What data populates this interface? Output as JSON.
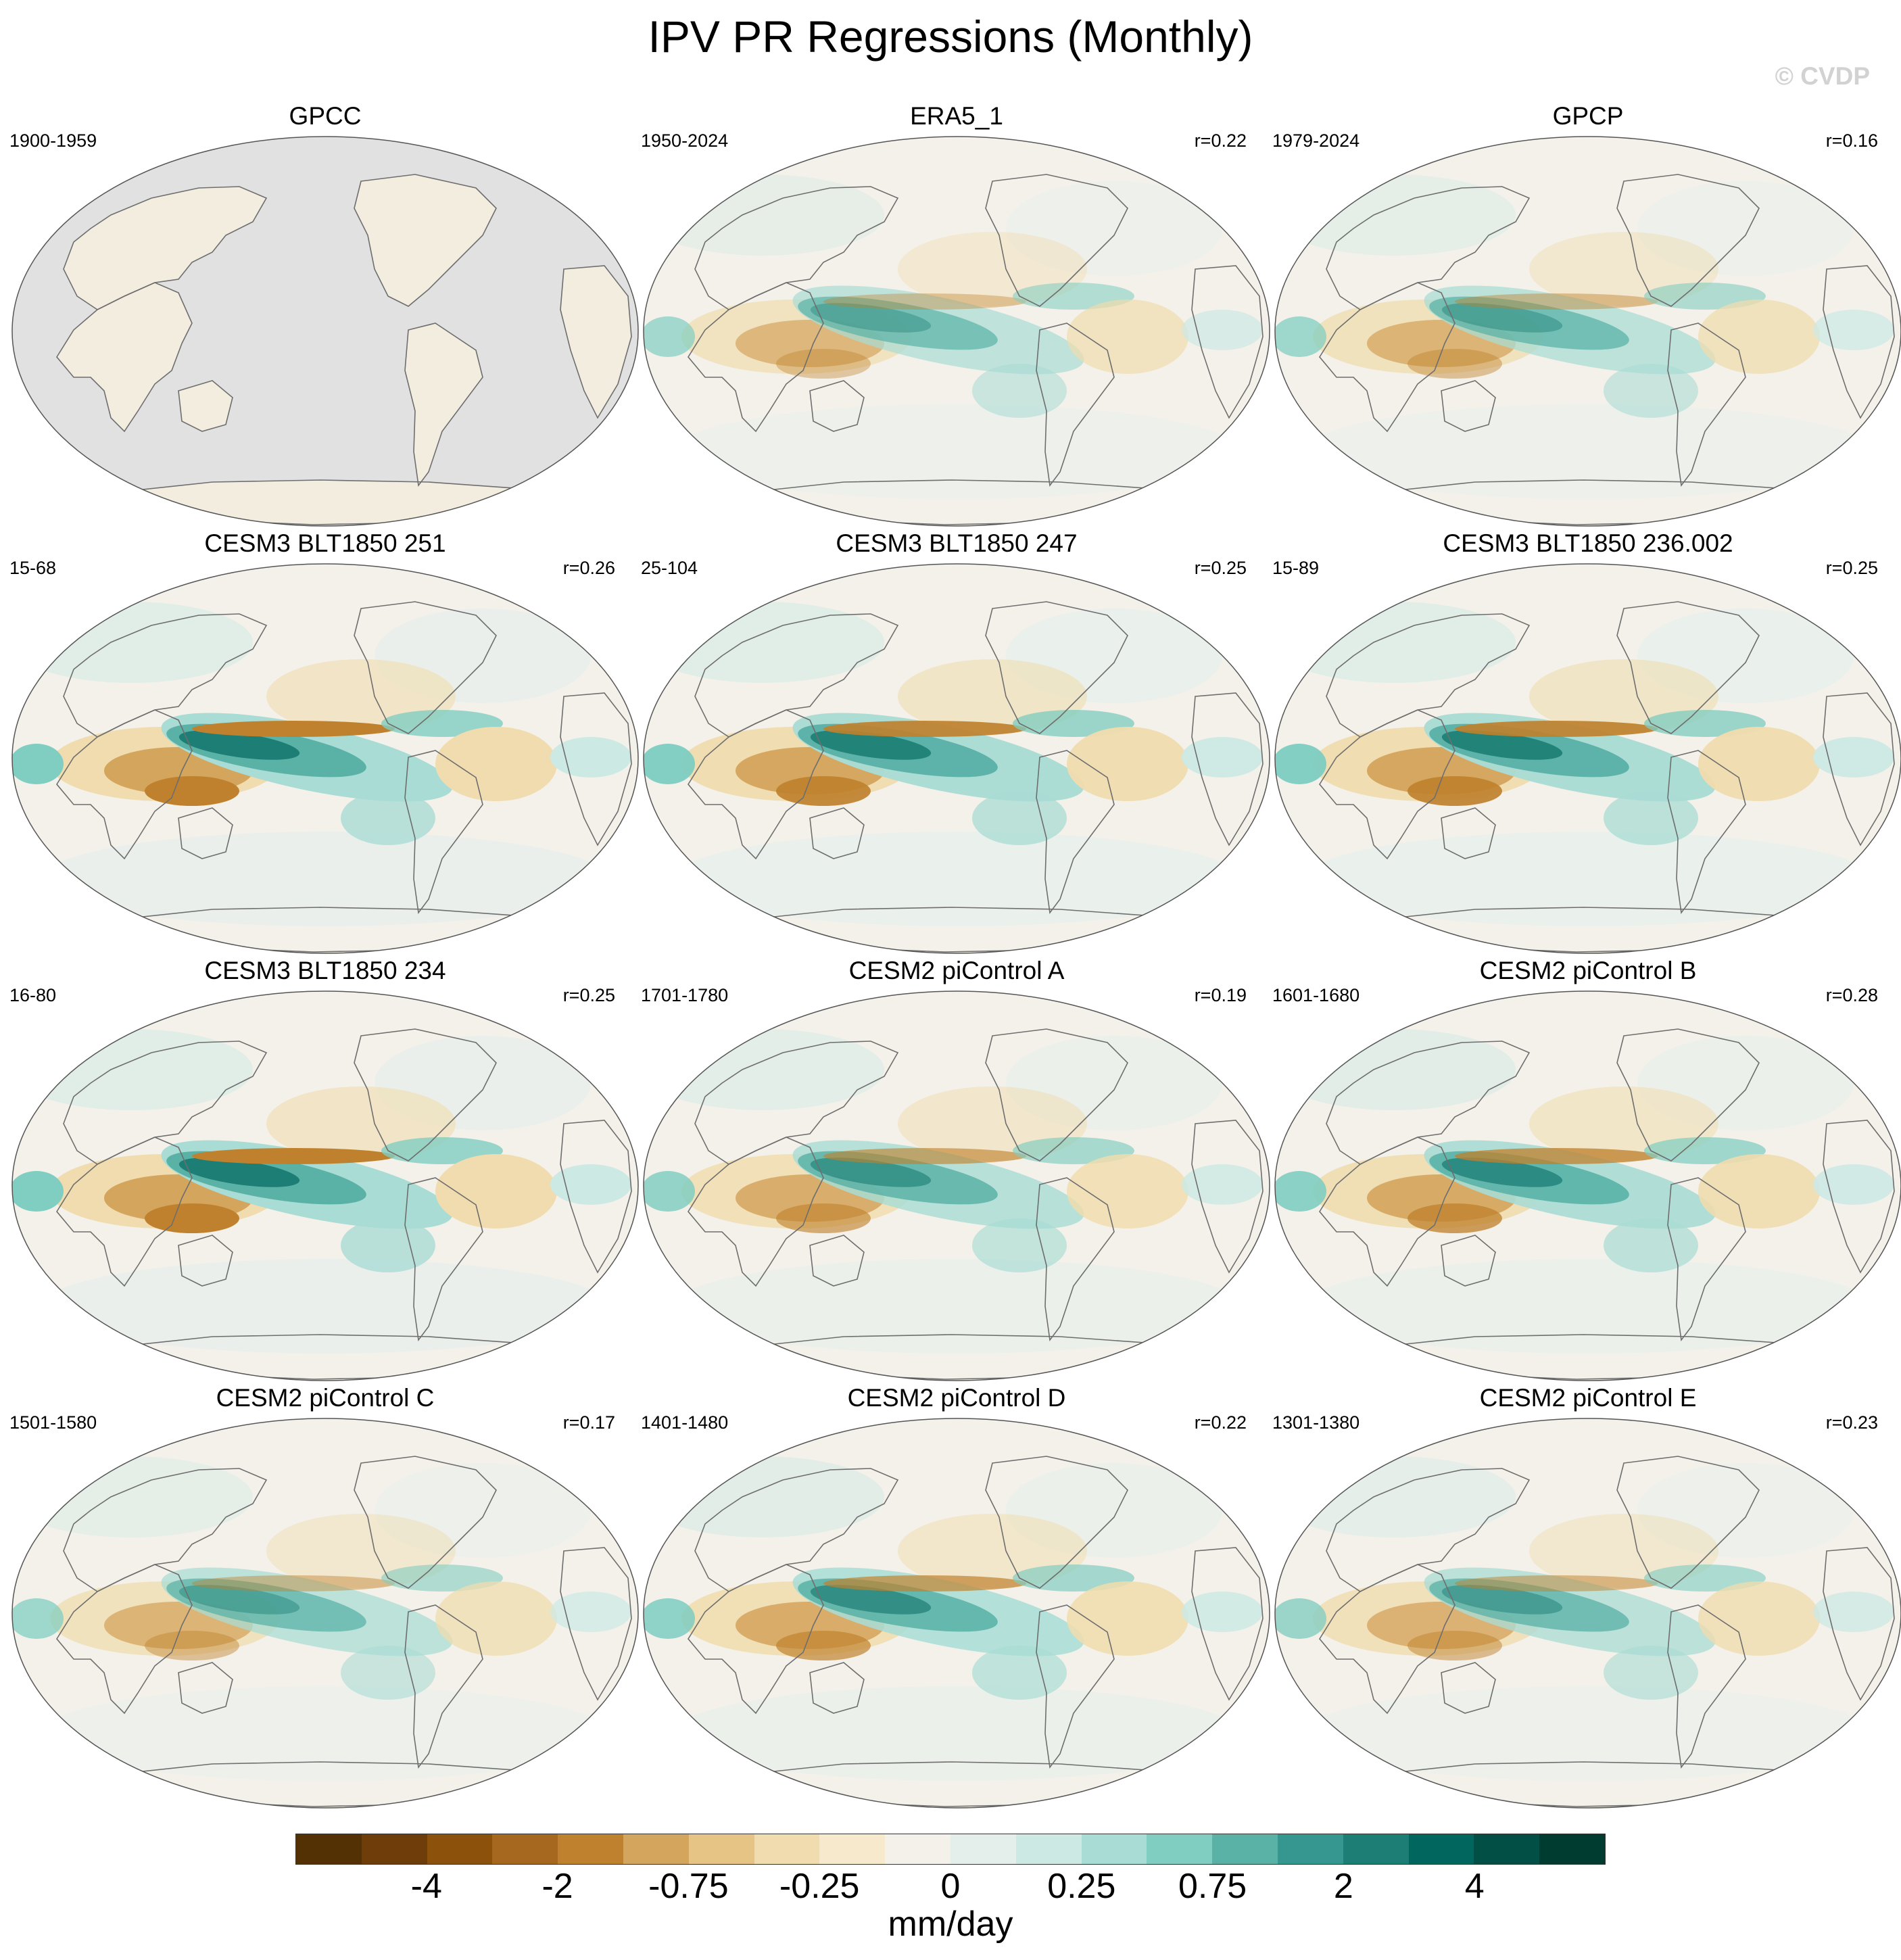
{
  "figure": {
    "title": "IPV PR Regressions (Monthly)",
    "copyright": "© CVDP"
  },
  "panels": [
    {
      "name": "GPCC",
      "years": "1900-1959",
      "r": "",
      "masked": true,
      "strength": 0.25
    },
    {
      "name": "ERA5_1",
      "years": "1950-2024",
      "r": "r=0.22",
      "masked": false,
      "strength": 0.55
    },
    {
      "name": "GPCP",
      "years": "1979-2024",
      "r": "r=0.16",
      "masked": false,
      "strength": 0.6
    },
    {
      "name": "CESM3 BLT1850 251",
      "years": "15-68",
      "r": "r=0.26",
      "masked": false,
      "strength": 1.0
    },
    {
      "name": "CESM3 BLT1850 247",
      "years": "25-104",
      "r": "r=0.25",
      "masked": false,
      "strength": 0.95
    },
    {
      "name": "CESM3 BLT1850 236.002",
      "years": "15-89",
      "r": "r=0.25",
      "masked": false,
      "strength": 0.95
    },
    {
      "name": "CESM3 BLT1850 234",
      "years": "16-80",
      "r": "r=0.25",
      "masked": false,
      "strength": 1.0
    },
    {
      "name": "CESM2 piControl A",
      "years": "1701-1780",
      "r": "r=0.19",
      "masked": false,
      "strength": 0.75
    },
    {
      "name": "CESM2 piControl B",
      "years": "1601-1680",
      "r": "r=0.28",
      "masked": false,
      "strength": 0.85
    },
    {
      "name": "CESM2 piControl C",
      "years": "1501-1580",
      "r": "r=0.17",
      "masked": false,
      "strength": 0.6
    },
    {
      "name": "CESM2 piControl D",
      "years": "1401-1480",
      "r": "r=0.22",
      "masked": false,
      "strength": 0.8
    },
    {
      "name": "CESM2 piControl E",
      "years": "1301-1380",
      "r": "r=0.23",
      "masked": false,
      "strength": 0.65
    }
  ],
  "colorbar": {
    "colors": [
      "#543005",
      "#6f3d0a",
      "#8c510a",
      "#a6681f",
      "#bf812d",
      "#d4a55d",
      "#e5c486",
      "#f0dcae",
      "#f6e9cc",
      "#f4f1ea",
      "#e4efec",
      "#cde9e4",
      "#a9dcd4",
      "#80cdc1",
      "#5ab2a7",
      "#35978f",
      "#1d7e75",
      "#01665e",
      "#014f45",
      "#003c30"
    ],
    "labels": [
      "-4",
      "-2",
      "-0.75",
      "-0.25",
      "0",
      "0.25",
      "0.75",
      "2",
      "4"
    ],
    "units": "mm/day"
  }
}
